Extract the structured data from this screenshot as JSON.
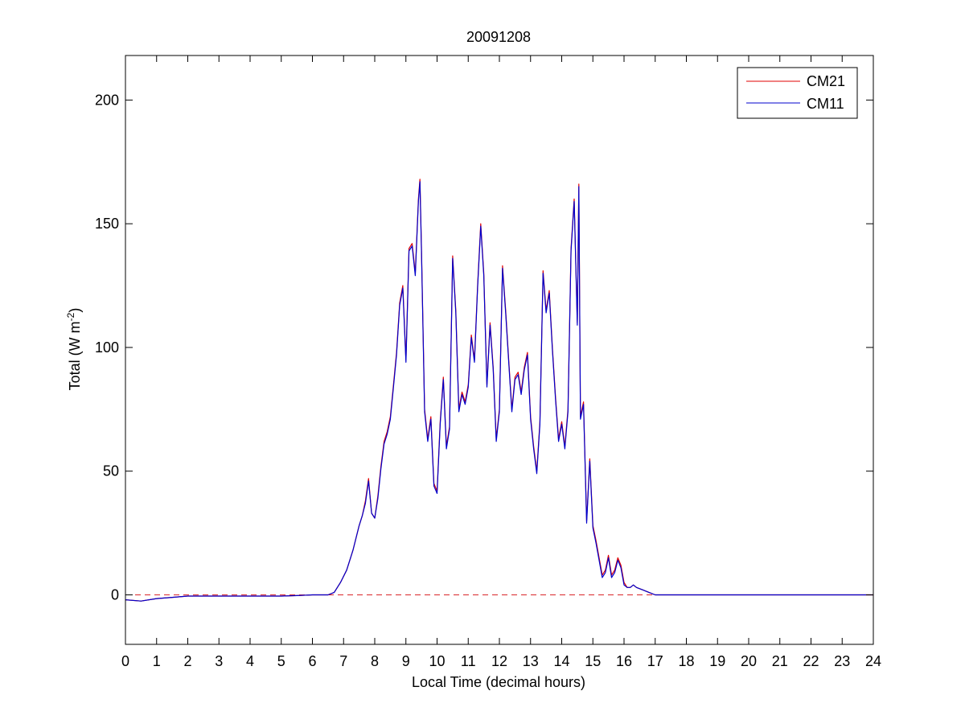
{
  "chart_data": {
    "type": "line",
    "title": "20091208",
    "xlabel": "Local Time (decimal hours)",
    "ylabel_main": "Total (W m",
    "ylabel_sup": "-2",
    "ylabel_close": ")",
    "xlim": [
      0,
      24
    ],
    "ylim": [
      -20,
      218
    ],
    "xticks": [
      0,
      1,
      2,
      3,
      4,
      5,
      6,
      7,
      8,
      9,
      10,
      11,
      12,
      13,
      14,
      15,
      16,
      17,
      18,
      19,
      20,
      21,
      22,
      23,
      24
    ],
    "yticks": [
      0,
      50,
      100,
      150,
      200
    ],
    "grid": false,
    "legend_position": "top-right",
    "zero_line": {
      "y": 0,
      "color": "#d9262a",
      "style": "dashed"
    },
    "x": [
      0,
      0.5,
      1.0,
      1.5,
      2.0,
      3.0,
      4.0,
      4.5,
      5.0,
      5.5,
      6.0,
      6.5,
      6.7,
      6.9,
      7.1,
      7.3,
      7.5,
      7.6,
      7.7,
      7.8,
      7.9,
      8.0,
      8.1,
      8.2,
      8.3,
      8.4,
      8.5,
      8.6,
      8.7,
      8.8,
      8.9,
      9.0,
      9.1,
      9.2,
      9.3,
      9.4,
      9.45,
      9.5,
      9.6,
      9.7,
      9.8,
      9.9,
      10.0,
      10.1,
      10.2,
      10.3,
      10.4,
      10.5,
      10.6,
      10.7,
      10.8,
      10.9,
      11.0,
      11.1,
      11.2,
      11.3,
      11.4,
      11.5,
      11.6,
      11.7,
      11.8,
      11.9,
      12.0,
      12.1,
      12.2,
      12.3,
      12.4,
      12.5,
      12.6,
      12.7,
      12.8,
      12.9,
      13.0,
      13.1,
      13.2,
      13.3,
      13.4,
      13.5,
      13.6,
      13.7,
      13.8,
      13.9,
      14.0,
      14.1,
      14.2,
      14.3,
      14.4,
      14.5,
      14.55,
      14.6,
      14.7,
      14.8,
      14.9,
      15.0,
      15.1,
      15.2,
      15.3,
      15.4,
      15.5,
      15.6,
      15.7,
      15.8,
      15.9,
      16.0,
      16.1,
      16.2,
      16.3,
      16.4,
      16.6,
      16.8,
      17.0,
      17.2,
      18.0,
      20.0,
      22.0,
      24.0
    ],
    "series": [
      {
        "name": "CM21",
        "color": "#e00000",
        "values": [
          -2,
          -2.5,
          -1.5,
          -1,
          -0.5,
          -0.5,
          -0.5,
          -0.5,
          -0.5,
          -0.3,
          0,
          0,
          1,
          5,
          10,
          18,
          28,
          32,
          38,
          47,
          33,
          31,
          40,
          52,
          62,
          66,
          72,
          85,
          98,
          118,
          125,
          95,
          140,
          142,
          130,
          160,
          168,
          140,
          75,
          63,
          72,
          45,
          42,
          70,
          88,
          60,
          68,
          137,
          115,
          75,
          82,
          78,
          85,
          105,
          95,
          125,
          150,
          130,
          85,
          110,
          92,
          63,
          75,
          133,
          115,
          95,
          75,
          88,
          90,
          82,
          92,
          98,
          72,
          60,
          50,
          70,
          131,
          115,
          123,
          100,
          80,
          63,
          70,
          60,
          75,
          140,
          160,
          110,
          166,
          72,
          78,
          30,
          55,
          28,
          22,
          15,
          8,
          10,
          16,
          8,
          10,
          15,
          12,
          5,
          3,
          3,
          4,
          3,
          2,
          1,
          0,
          0,
          0,
          0,
          0,
          0
        ]
      },
      {
        "name": "CM11",
        "color": "#0000cc",
        "values": [
          -2,
          -2.5,
          -1.5,
          -1,
          -0.5,
          -0.5,
          -0.5,
          -0.5,
          -0.5,
          -0.3,
          0,
          0,
          1,
          5,
          10,
          18,
          28,
          32,
          37,
          46,
          33,
          31,
          39,
          51,
          61,
          65,
          71,
          84,
          97,
          117,
          124,
          94,
          139,
          141,
          129,
          159,
          167,
          139,
          74,
          62,
          71,
          44,
          41,
          69,
          87,
          59,
          67,
          136,
          114,
          74,
          81,
          77,
          84,
          104,
          94,
          124,
          149,
          129,
          84,
          109,
          91,
          62,
          74,
          132,
          114,
          94,
          74,
          87,
          89,
          81,
          91,
          97,
          71,
          59,
          49,
          69,
          130,
          114,
          122,
          99,
          79,
          62,
          69,
          59,
          74,
          139,
          159,
          109,
          165,
          71,
          77,
          29,
          54,
          27,
          21,
          14,
          7,
          9,
          15,
          7,
          9,
          14,
          11,
          4,
          3,
          3,
          4,
          3,
          2,
          1,
          0,
          0,
          0,
          0,
          0,
          0
        ]
      }
    ]
  }
}
